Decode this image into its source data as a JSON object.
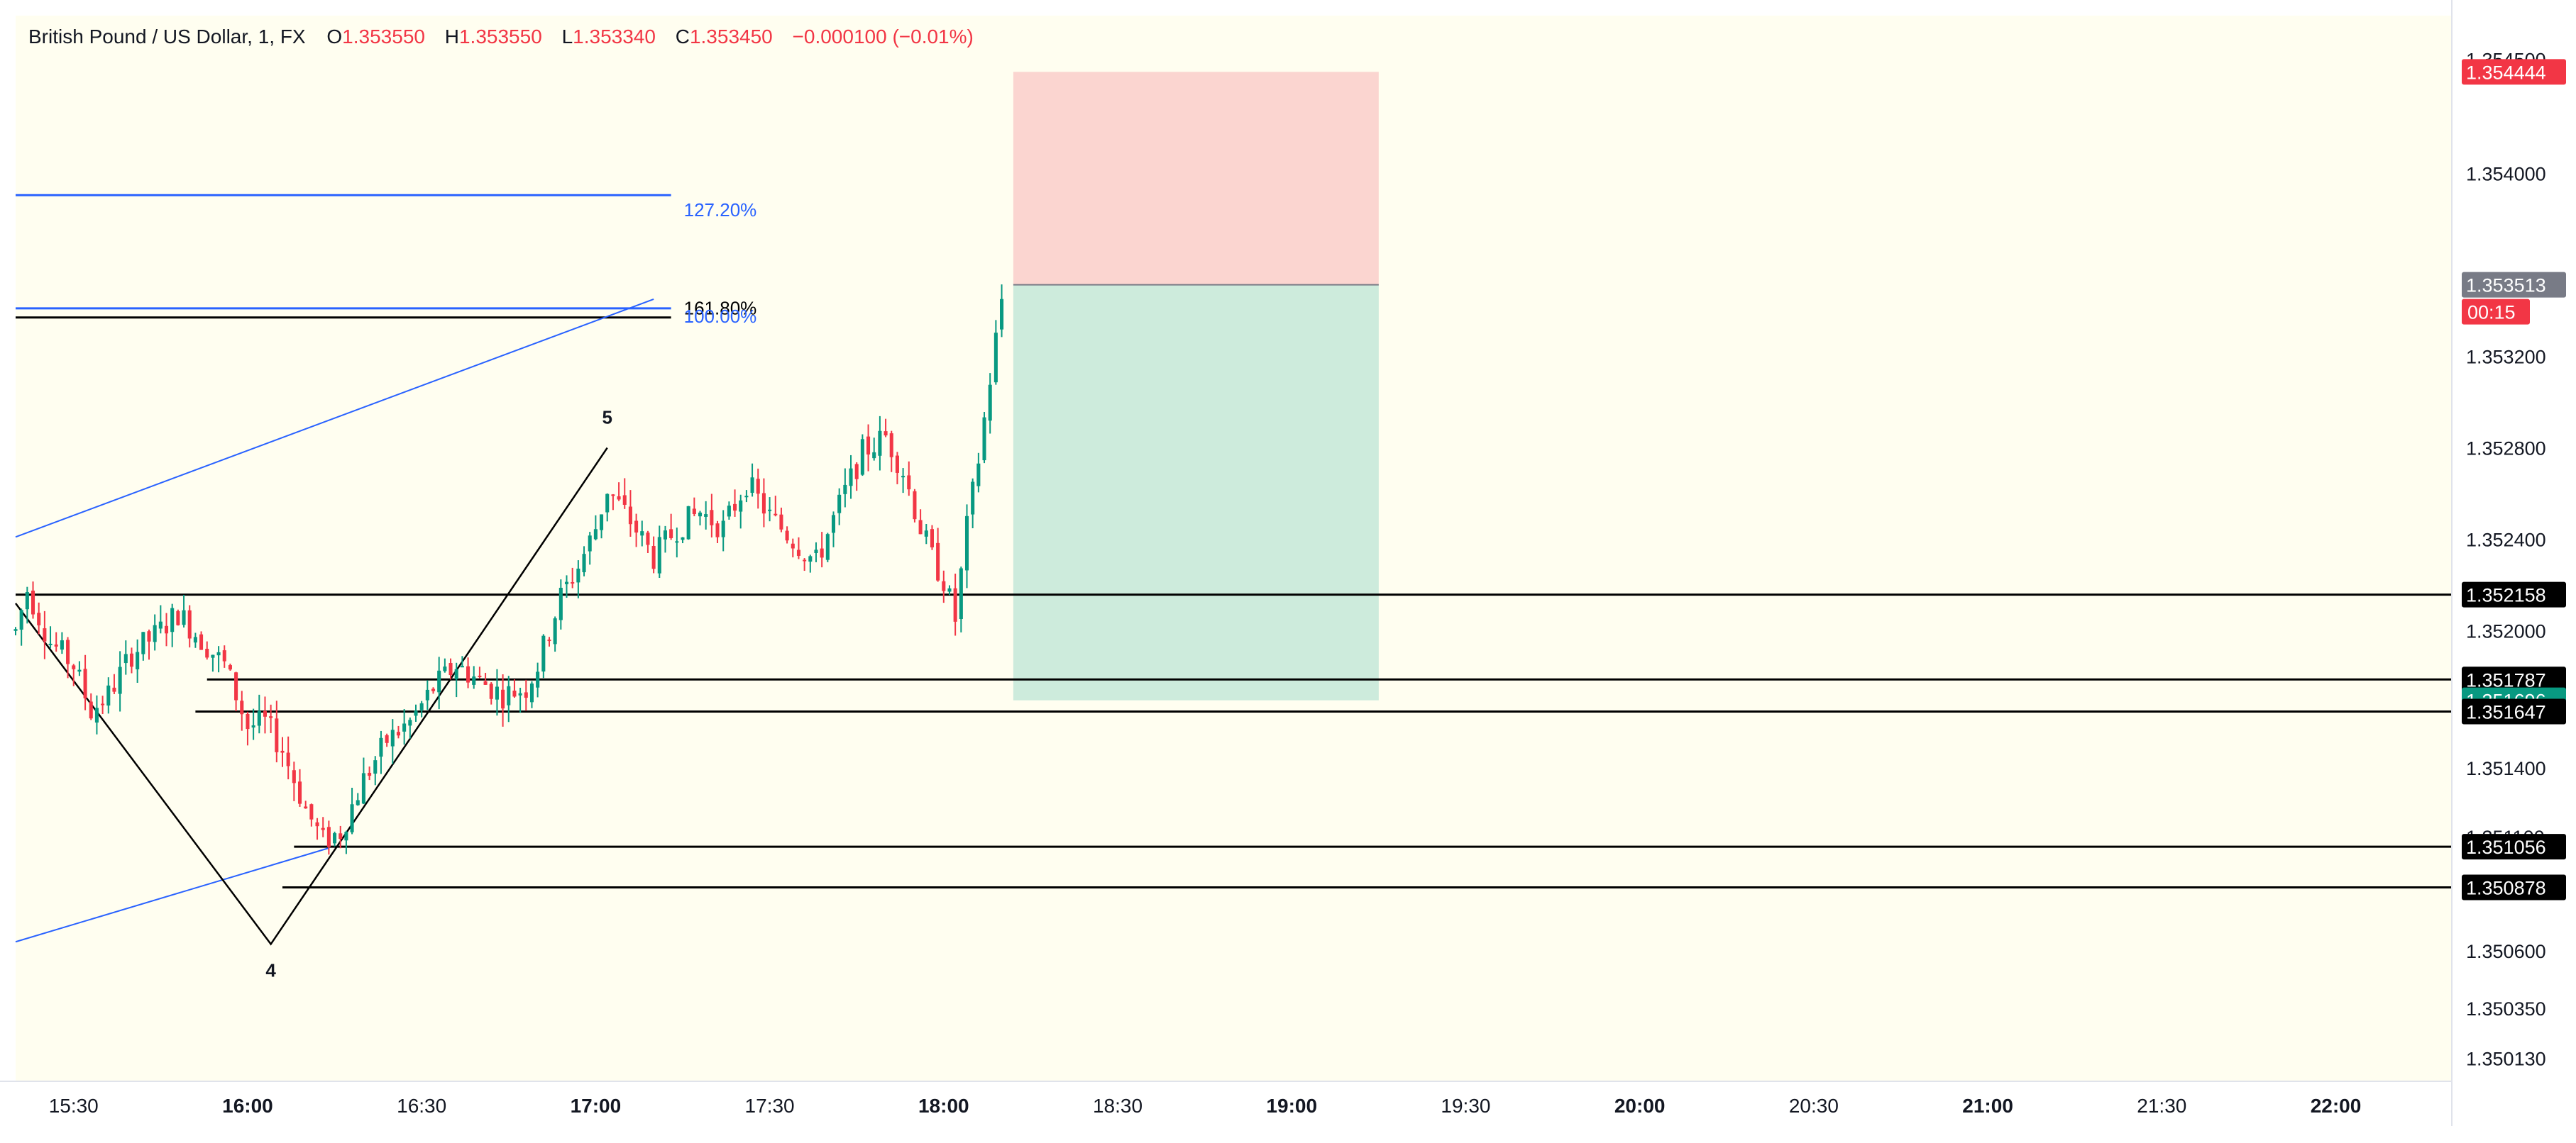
{
  "legend": {
    "symbol": "British Pound / US Dollar, 1, FX",
    "o_label": "O",
    "o_value": "1.353550",
    "h_label": "H",
    "h_value": "1.353550",
    "l_label": "L",
    "l_value": "1.353340",
    "c_label": "C",
    "c_value": "1.353450",
    "change": "−0.000100 (−0.01%)"
  },
  "colors": {
    "background": "#fffef0",
    "up": "#089981",
    "down": "#f23645",
    "fib_blue": "#2962ff",
    "level_line": "#000000",
    "stop_zone": "#fbd5d0",
    "target_zone": "#cdebdc"
  },
  "chart_data": {
    "type": "candlestick",
    "x_axis": {
      "tick_labels": [
        "15:30",
        "16:00",
        "16:30",
        "17:00",
        "17:30",
        "18:00",
        "18:30",
        "19:00",
        "19:30",
        "20:00",
        "20:30",
        "21:00",
        "21:30",
        "22:00"
      ],
      "bold_ticks": [
        "16:00",
        "17:00",
        "18:00",
        "19:00",
        "20:00",
        "21:00",
        "22:00"
      ],
      "range": [
        "15:20",
        "22:20"
      ]
    },
    "y_axis": {
      "tick_labels": [
        "1.354500",
        "1.354000",
        "1.353200",
        "1.352800",
        "1.352400",
        "1.352000",
        "1.351400",
        "1.351100",
        "1.350600",
        "1.350350",
        "1.350130"
      ],
      "range": [
        1.35003,
        1.35469
      ]
    },
    "series_path": [
      [
        "15:20",
        1.352
      ],
      [
        "15:22",
        1.35218
      ],
      [
        "15:26",
        1.35195
      ],
      [
        "15:30",
        1.35185
      ],
      [
        "15:33",
        1.35165
      ],
      [
        "15:36",
        1.35172
      ],
      [
        "15:40",
        1.3519
      ],
      [
        "15:44",
        1.35198
      ],
      [
        "15:48",
        1.35208
      ],
      [
        "15:52",
        1.35196
      ],
      [
        "15:56",
        1.35185
      ],
      [
        "15:58",
        1.35172
      ],
      [
        "16:00",
        1.35158
      ],
      [
        "16:03",
        1.3516
      ],
      [
        "16:06",
        1.35148
      ],
      [
        "16:10",
        1.35122
      ],
      [
        "16:13",
        1.35108
      ],
      [
        "16:16",
        1.35112
      ],
      [
        "16:20",
        1.35135
      ],
      [
        "16:24",
        1.35152
      ],
      [
        "16:28",
        1.3516
      ],
      [
        "16:32",
        1.35175
      ],
      [
        "16:36",
        1.35185
      ],
      [
        "16:40",
        1.35178
      ],
      [
        "16:44",
        1.35172
      ],
      [
        "16:48",
        1.35175
      ],
      [
        "16:50",
        1.35185
      ],
      [
        "16:54",
        1.35215
      ],
      [
        "16:57",
        1.35228
      ],
      [
        "17:00",
        1.35245
      ],
      [
        "17:02",
        1.35262
      ],
      [
        "17:06",
        1.35248
      ],
      [
        "17:10",
        1.35232
      ],
      [
        "17:14",
        1.35245
      ],
      [
        "17:18",
        1.35252
      ],
      [
        "17:22",
        1.35245
      ],
      [
        "17:26",
        1.35265
      ],
      [
        "17:30",
        1.3525
      ],
      [
        "17:34",
        1.3524
      ],
      [
        "17:38",
        1.3523
      ],
      [
        "17:42",
        1.35255
      ],
      [
        "17:46",
        1.35278
      ],
      [
        "17:50",
        1.35285
      ],
      [
        "17:53",
        1.3527
      ],
      [
        "17:56",
        1.35245
      ],
      [
        "17:58",
        1.35232
      ],
      [
        "18:00",
        1.35222
      ],
      [
        "18:02",
        1.35205
      ],
      [
        "18:04",
        1.35245
      ],
      [
        "18:06",
        1.35275
      ],
      [
        "18:08",
        1.3531
      ],
      [
        "18:10",
        1.35345
      ]
    ],
    "last_price": 1.353513,
    "countdown": "00:15",
    "price_tags": [
      {
        "label": "1.354444",
        "price": 1.354444,
        "color": "#f23645"
      },
      {
        "label": "1.353513",
        "price": 1.353513,
        "color": "#787b86"
      },
      {
        "label": "1.352158",
        "price": 1.352158,
        "color": "#000000"
      },
      {
        "label": "1.351787",
        "price": 1.351787,
        "color": "#000000"
      },
      {
        "label": "1.351696",
        "price": 1.351696,
        "color": "#089981"
      },
      {
        "label": "1.351647",
        "price": 1.351647,
        "color": "#000000"
      },
      {
        "label": "1.351056",
        "price": 1.351056,
        "color": "#000000"
      },
      {
        "label": "1.350878",
        "price": 1.350878,
        "color": "#000000"
      }
    ],
    "horizontal_levels": [
      {
        "price": 1.352158,
        "from": "15:20",
        "to": "22:20"
      },
      {
        "price": 1.351787,
        "from": "15:53",
        "to": "22:20"
      },
      {
        "price": 1.351647,
        "from": "15:51",
        "to": "22:20"
      },
      {
        "price": 1.351056,
        "from": "16:08",
        "to": "22:20"
      },
      {
        "price": 1.350878,
        "from": "16:06",
        "to": "22:20"
      }
    ],
    "fib_levels": [
      {
        "label": "127.20%",
        "price": 1.353905,
        "color": "#2962ff"
      },
      {
        "label": "161.80%",
        "price": 1.35337,
        "color": "#000000"
      },
      {
        "label": "100.00%",
        "price": 1.35341,
        "color": "#2962ff"
      }
    ],
    "fib_extent": [
      "15:20",
      "17:13"
    ],
    "wave_points": [
      {
        "label": "",
        "time": "15:20",
        "price": 1.35212
      },
      {
        "label": "4",
        "time": "16:04",
        "price": 1.35063
      },
      {
        "label": "5",
        "time": "17:02",
        "price": 1.3528
      }
    ],
    "channel_lines": [
      {
        "from": [
          "15:20",
          1.35064
        ],
        "to": [
          "16:14",
          1.35105
        ]
      },
      {
        "from": [
          "15:20",
          1.35241
        ],
        "to": [
          "17:10",
          1.35345
        ]
      }
    ],
    "position": {
      "type": "short",
      "from": "18:12",
      "to": "19:15",
      "stop": 1.354444,
      "entry": 1.353513,
      "target": 1.351696
    }
  }
}
